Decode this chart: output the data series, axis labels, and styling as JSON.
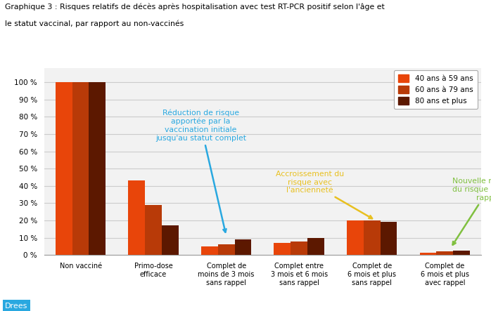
{
  "title_line1": "Graphique 3 : Risques relatifs de décès après hospitalisation avec test RT-PCR positif selon l'âge et",
  "title_line2": "le statut vaccinal, par rapport au non-vaccinés",
  "categories": [
    "Non vacciné",
    "Primo-dose\nefficace",
    "Complet de\nmoins de 3 mois\nsans rappel",
    "Complet entre\n3 mois et 6 mois\nsans rappel",
    "Complet de\n6 mois et plus\nsans rappel",
    "Complet de\n6 mois et plus\navec rappel"
  ],
  "series": {
    "40 ans à 59 ans": [
      100,
      43,
      5,
      7,
      20,
      1.5
    ],
    "60 ans à 79 ans": [
      100,
      29,
      6,
      8,
      20,
      2
    ],
    "80 ans et plus": [
      100,
      17,
      9,
      10,
      19,
      2.5
    ]
  },
  "colors": {
    "40 ans à 59 ans": "#E8450A",
    "60 ans à 79 ans": "#B83A08",
    "80 ans et plus": "#5C1800"
  },
  "ylim": [
    0,
    108
  ],
  "yticks": [
    0,
    10,
    20,
    30,
    40,
    50,
    60,
    70,
    80,
    90,
    100
  ],
  "background_color": "#FFFFFF",
  "plot_bg_color": "#F2F2F2",
  "grid_color": "#CCCCCC",
  "annotation1_text": "Réduction de risque\napportée par la\nvaccination initiale\njusqu'au statut complet",
  "annotation1_color": "#29A8E0",
  "annotation2_text": "Accroissement du\nrisque avec\nl'ancienneté",
  "annotation2_color": "#E8C020",
  "annotation3_text": "Nouvelle réduction\ndu risque grâce au\nrappel",
  "annotation3_color": "#80C040",
  "drees_color": "#29A8E0",
  "legend_labels": [
    "40 ans à 59 ans",
    "60 ans à 79 ans",
    "80 ans et plus"
  ]
}
